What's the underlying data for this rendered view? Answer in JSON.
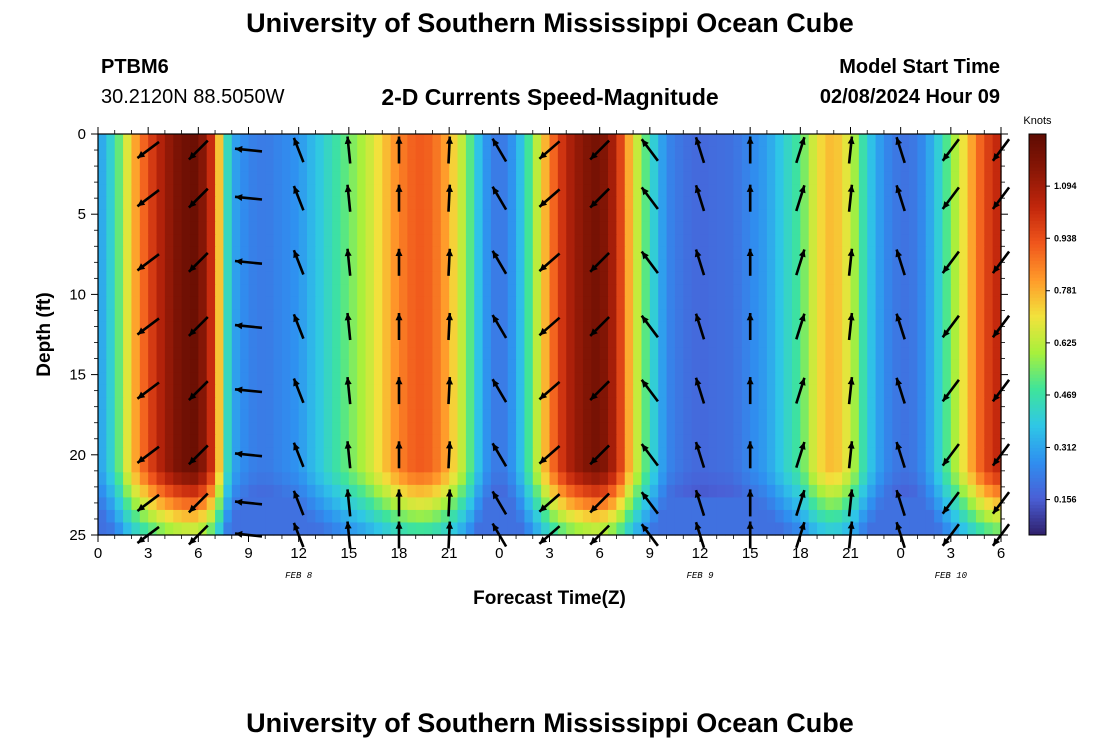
{
  "header": {
    "title": "University of Southern Mississippi Ocean Cube",
    "station_id": "PTBM6",
    "station_coords": "30.2120N  88.5050W",
    "chart_title": "2-D Currents Speed-Magnitude",
    "model_label": "Model Start Time",
    "model_time": "02/08/2024 Hour 09"
  },
  "footer": {
    "title": "University of Southern Mississippi Ocean Cube"
  },
  "chart_data": {
    "type": "heatmap",
    "title": "2-D Currents Speed-Magnitude",
    "xlabel": "Forecast Time(Z)",
    "ylabel": "Depth (ft)",
    "x_range_hours": [
      0,
      54
    ],
    "x_tick_labels": [
      "0",
      "3",
      "6",
      "9",
      "12",
      "15",
      "18",
      "21",
      "0",
      "3",
      "6",
      "9",
      "12",
      "15",
      "18",
      "21",
      "0",
      "3",
      "6"
    ],
    "date_labels": [
      {
        "text": "FEB 8",
        "hour": 12
      },
      {
        "text": "FEB 9",
        "hour": 36
      },
      {
        "text": "FEB 10",
        "hour": 51
      }
    ],
    "y_range": [
      0,
      25
    ],
    "y_ticks": [
      0,
      5,
      10,
      15,
      20,
      25
    ],
    "colorbar": {
      "unit": "Knots",
      "range": [
        0.05,
        1.25
      ],
      "tick_labels": [
        "0.156",
        "0.312",
        "0.469",
        "0.625",
        "0.781",
        "0.938",
        "1.094"
      ],
      "colors": [
        "#2f1f6b",
        "#4a5fd6",
        "#2f8ff0",
        "#2fc7e6",
        "#3fe49a",
        "#a8f03c",
        "#f2e23c",
        "#ff9a2a",
        "#f0561c",
        "#c1260c",
        "#8a1706",
        "#5e0b02"
      ]
    },
    "speed_profile": {
      "hours": [
        0,
        1,
        2,
        3,
        4,
        5,
        6,
        7,
        7.5,
        8,
        9,
        10,
        12,
        14,
        16,
        18,
        19,
        20,
        21,
        22,
        23,
        24,
        25,
        26,
        27,
        28,
        29,
        30,
        31,
        32,
        33,
        34,
        35,
        36,
        38,
        40,
        42,
        43,
        44,
        45,
        46,
        47,
        48,
        49,
        50,
        51,
        52,
        53,
        54
      ],
      "surface_knots": [
        0.28,
        0.45,
        0.75,
        0.95,
        1.1,
        1.2,
        1.22,
        0.95,
        0.55,
        0.32,
        0.24,
        0.22,
        0.28,
        0.45,
        0.62,
        0.85,
        0.92,
        0.9,
        0.78,
        0.58,
        0.3,
        0.2,
        0.3,
        0.55,
        0.85,
        1.05,
        1.15,
        1.2,
        1.05,
        0.7,
        0.45,
        0.25,
        0.2,
        0.18,
        0.2,
        0.3,
        0.5,
        0.7,
        0.78,
        0.65,
        0.4,
        0.26,
        0.2,
        0.22,
        0.35,
        0.55,
        0.75,
        0.95,
        1.05
      ]
    },
    "vectors": [
      {
        "hour": 3,
        "u": -0.8,
        "v": -0.6
      },
      {
        "hour": 6,
        "u": -0.7,
        "v": -0.7
      },
      {
        "hour": 9,
        "u": -1.0,
        "v": 0.1
      },
      {
        "hour": 12,
        "u": -0.35,
        "v": 0.9
      },
      {
        "hour": 15,
        "u": -0.1,
        "v": 1.0
      },
      {
        "hour": 18,
        "u": 0.0,
        "v": 1.0
      },
      {
        "hour": 21,
        "u": 0.05,
        "v": 1.0
      },
      {
        "hour": 24,
        "u": -0.5,
        "v": 0.85
      },
      {
        "hour": 27,
        "u": -0.75,
        "v": -0.65
      },
      {
        "hour": 30,
        "u": -0.7,
        "v": -0.7
      },
      {
        "hour": 33,
        "u": -0.6,
        "v": 0.8
      },
      {
        "hour": 36,
        "u": -0.3,
        "v": 0.95
      },
      {
        "hour": 39,
        "u": 0.0,
        "v": 1.0
      },
      {
        "hour": 42,
        "u": 0.3,
        "v": 0.95
      },
      {
        "hour": 45,
        "u": 0.1,
        "v": 1.0
      },
      {
        "hour": 48,
        "u": -0.3,
        "v": 0.95
      },
      {
        "hour": 51,
        "u": -0.6,
        "v": -0.8
      },
      {
        "hour": 54,
        "u": -0.6,
        "v": -0.8
      }
    ]
  }
}
